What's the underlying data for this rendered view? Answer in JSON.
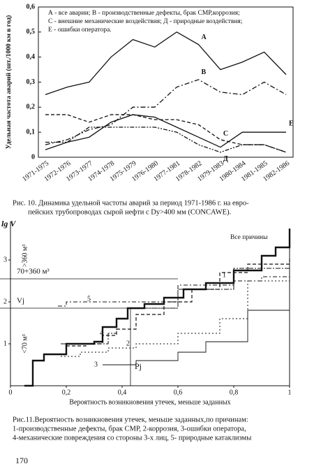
{
  "chart_data": [
    {
      "type": "line",
      "ylabel": "Удельная частота аварий (шт./1000 км в год)",
      "legend_text": [
        "А - все аварии; В - производственные дефекты, брак СМР,коррозия;",
        "С - внешние механические воздействия; Д - природные воздействия;",
        "Е - ошибки оператора."
      ],
      "categories": [
        "1971-1975",
        "1972-1976",
        "1973-1977",
        "1974-1978",
        "1975-1979",
        "1976-1980",
        "1977-1981",
        "1978-1982",
        "1979-1983",
        "1980-1984",
        "1981-1985",
        "1982-1986"
      ],
      "ylim": [
        0,
        0.6
      ],
      "yticks": [
        0,
        {
          "value": 0.1,
          "label": "0,1"
        },
        {
          "value": 0.2,
          "label": "0,2"
        },
        {
          "value": 0.3,
          "label": "0,3"
        },
        {
          "value": 0.4,
          "label": "0,4"
        },
        {
          "value": 0.5,
          "label": "0,5"
        },
        {
          "value": 0.6,
          "label": "0,6"
        }
      ],
      "series": [
        {
          "name": "А",
          "color": "#111111",
          "dash": "none",
          "values": [
            0.25,
            0.28,
            0.3,
            0.4,
            0.47,
            0.44,
            0.5,
            0.45,
            0.35,
            0.38,
            0.42,
            0.33
          ]
        },
        {
          "name": "В",
          "color": "#111111",
          "dash": "7 3 2 3",
          "values": [
            0.05,
            0.07,
            0.11,
            0.13,
            0.2,
            0.2,
            0.28,
            0.31,
            0.26,
            0.25,
            0.3,
            0.25
          ]
        },
        {
          "name": "С",
          "color": "#111111",
          "dash": "5 3",
          "values": [
            0.17,
            0.17,
            0.14,
            0.17,
            0.17,
            0.15,
            0.15,
            0.13,
            0.07,
            0.05,
            0.05,
            0.02
          ]
        },
        {
          "name": "Д",
          "color": "#111111",
          "dash": "6 2 2 2 2 2",
          "values": [
            0.06,
            0.06,
            0.12,
            0.12,
            0.12,
            0.12,
            0.1,
            0.05,
            0.02,
            0.05,
            0.05,
            0.02
          ]
        },
        {
          "name": "Е",
          "color": "#111111",
          "dash": "none",
          "values": [
            0.03,
            0.06,
            0.08,
            0.14,
            0.17,
            0.16,
            0.12,
            0.08,
            0.04,
            0.1,
            0.1,
            0.1
          ]
        }
      ],
      "caption": [
        "Рис. 10. Динамика удельной частоты аварий за период 1971-1986 г. на евро-",
        "пейских трубопроводах сырой нефти с Dу>400 мм (CONCAWE)."
      ]
    },
    {
      "type": "step",
      "ylabel": "lg V",
      "xlabel": "Вероятность возникновения утечек, меньше заданных",
      "xlim": [
        0,
        1
      ],
      "xticks": [
        0,
        {
          "value": 0.2,
          "label": "0,2"
        },
        {
          "value": 0.4,
          "label": "0,4"
        },
        {
          "value": 0.6,
          "label": "0,6"
        },
        {
          "value": 0.8,
          "label": "0,8"
        },
        1
      ],
      "ylim": [
        0,
        3.75
      ],
      "yticks": [
        1,
        2,
        3
      ],
      "band_labels": [
        ">360 м³",
        "<70 м³"
      ],
      "hlines": [
        {
          "value": 2.55,
          "label": "70+360 м³"
        },
        {
          "value": 1.85,
          "label": "Vj"
        }
      ],
      "vlines": [
        {
          "value": 0.43,
          "label": "Pj"
        }
      ],
      "series": [
        {
          "name": "Все причины",
          "color": "#111111",
          "dash": "none",
          "width": 2.4,
          "x": [
            0.05,
            0.08,
            0.12,
            0.15,
            0.2,
            0.22,
            0.3,
            0.33,
            0.38,
            0.42,
            0.48,
            0.55,
            0.62,
            0.7,
            0.8,
            0.9,
            0.95,
            1.0
          ],
          "values": [
            0,
            0.6,
            0.75,
            0.75,
            1.0,
            1.0,
            1.05,
            1.4,
            1.6,
            1.85,
            1.95,
            2.1,
            2.3,
            2.45,
            2.75,
            3.1,
            3.3,
            3.75
          ]
        },
        {
          "name": "1",
          "color": "#111111",
          "dash": "5 3",
          "width": 1.2,
          "x": [
            0.15,
            0.2,
            0.27,
            0.33,
            0.38,
            0.45,
            0.55,
            0.65,
            0.75,
            0.85,
            1.0
          ],
          "values": [
            0.75,
            0.95,
            1.0,
            1.2,
            1.35,
            1.7,
            2.0,
            2.3,
            2.7,
            2.9,
            3.05
          ]
        },
        {
          "name": "2",
          "color": "#111111",
          "dash": "2 3",
          "width": 1,
          "x": [
            0.18,
            0.25,
            0.35,
            0.45,
            0.6,
            0.75,
            0.85,
            1.0
          ],
          "values": [
            0.7,
            0.8,
            0.9,
            1.0,
            1.25,
            1.6,
            2.5,
            3.5
          ]
        },
        {
          "name": "3",
          "color": "#111111",
          "dash": "none",
          "width": 0.9,
          "x": [
            0.33,
            0.45,
            0.6,
            0.7,
            0.85,
            1.0
          ],
          "values": [
            0.5,
            0.6,
            0.8,
            1.05,
            1.8,
            2.75
          ]
        },
        {
          "name": "4",
          "color": "#111111",
          "dash": "7 2 2 2",
          "width": 1,
          "x": [
            0.18,
            0.3,
            0.35,
            0.38,
            0.42,
            0.6,
            0.8,
            1.0
          ],
          "values": [
            1.0,
            1.0,
            1.25,
            1.6,
            1.85,
            2.3,
            2.8,
            3.4
          ]
        },
        {
          "name": "5",
          "color": "#111111",
          "dash": "6 3 2 3",
          "width": 1,
          "x": [
            0.17,
            0.2,
            0.6,
            0.8,
            0.9,
            1.0
          ],
          "values": [
            1.9,
            2.0,
            2.4,
            2.5,
            2.6,
            3.7
          ]
        }
      ],
      "caption": [
        "Рис.11.Вероятность возникновения утечек, меньше заданных,по причинам:",
        "1-производственные дефекты, брак СМР, 2-коррозия, 3-ошибки оператора,",
        "4-механические повреждения со стороны 3-х лиц, 5- природные катаклизмы"
      ]
    }
  ],
  "page_number": "170"
}
